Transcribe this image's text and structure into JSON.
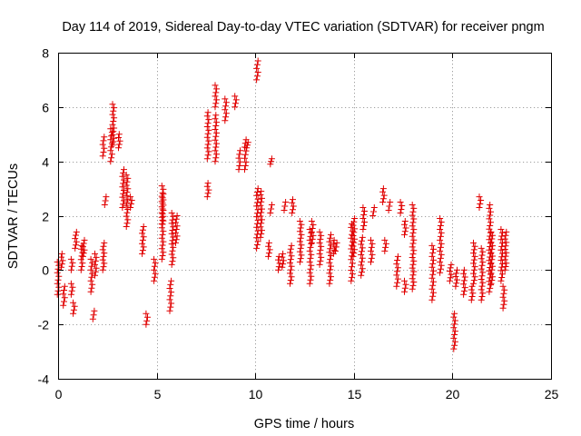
{
  "chart_data": {
    "type": "scatter",
    "title": "Day 114 of 2019, Sidereal Day-to-day VTEC variation (SDTVAR) for receiver pngm",
    "xlabel": "GPS time / hours",
    "ylabel": "SDTVAR / TECUs",
    "xlim": [
      0,
      25
    ],
    "ylim": [
      -4,
      8
    ],
    "xticks": [
      "0",
      "5",
      "10",
      "15",
      "20",
      "25"
    ],
    "yticks": [
      "-4",
      "-2",
      "0",
      "2",
      "4",
      "6",
      "8"
    ],
    "grid": true,
    "marker": "plus",
    "color": "#e00000",
    "series": [
      {
        "name": "SDTVAR",
        "tracks": [
          [
            0.0,
            0.3,
            -0.9
          ],
          [
            0.2,
            0.6,
            0.1
          ],
          [
            0.3,
            -1.3,
            -0.6
          ],
          [
            0.7,
            0.0,
            0.4
          ],
          [
            0.7,
            -0.9,
            -0.5
          ],
          [
            0.8,
            -1.6,
            -1.2
          ],
          [
            0.9,
            0.8,
            1.4
          ],
          [
            1.2,
            0.0,
            0.9
          ],
          [
            1.3,
            1.1,
            0.5
          ],
          [
            1.7,
            -0.8,
            0.4
          ],
          [
            1.8,
            -1.8,
            -1.5
          ],
          [
            1.9,
            0.6,
            -0.2
          ],
          [
            2.3,
            0.0,
            1.0
          ],
          [
            2.3,
            4.2,
            4.9
          ],
          [
            2.4,
            2.4,
            2.7
          ],
          [
            2.7,
            4.0,
            5.2
          ],
          [
            2.8,
            4.6,
            6.1
          ],
          [
            3.1,
            4.5,
            5.0
          ],
          [
            3.3,
            2.3,
            3.7
          ],
          [
            3.5,
            1.6,
            3.5
          ],
          [
            3.7,
            2.3,
            2.7
          ],
          [
            4.3,
            0.6,
            1.6
          ],
          [
            4.5,
            -2.0,
            -1.6
          ],
          [
            4.9,
            -0.4,
            0.4
          ],
          [
            5.3,
            0.4,
            3.1
          ],
          [
            5.3,
            1.7,
            2.8
          ],
          [
            5.7,
            -1.5,
            -0.4
          ],
          [
            5.8,
            0.2,
            2.1
          ],
          [
            6.0,
            1.0,
            2.0
          ],
          [
            7.6,
            2.7,
            3.2
          ],
          [
            7.6,
            4.1,
            5.8
          ],
          [
            8.0,
            4.0,
            5.7
          ],
          [
            8.0,
            6.0,
            6.8
          ],
          [
            8.5,
            5.5,
            6.3
          ],
          [
            9.0,
            6.0,
            6.4
          ],
          [
            9.2,
            3.7,
            4.4
          ],
          [
            9.5,
            3.7,
            4.8
          ],
          [
            9.6,
            4.5,
            4.7
          ],
          [
            10.1,
            7.0,
            7.7
          ],
          [
            10.1,
            0.8,
            3.0
          ],
          [
            10.3,
            1.2,
            2.9
          ],
          [
            10.7,
            0.5,
            1.0
          ],
          [
            10.8,
            3.9,
            4.1
          ],
          [
            10.8,
            2.1,
            2.4
          ],
          [
            11.2,
            0.0,
            0.5
          ],
          [
            11.4,
            0.1,
            0.6
          ],
          [
            11.5,
            2.2,
            2.5
          ],
          [
            11.8,
            -0.5,
            0.9
          ],
          [
            11.9,
            2.1,
            2.6
          ],
          [
            12.3,
            0.3,
            1.8
          ],
          [
            12.8,
            -0.5,
            1.5
          ],
          [
            12.9,
            1.0,
            1.8
          ],
          [
            13.3,
            0.2,
            1.4
          ],
          [
            13.8,
            -0.5,
            1.3
          ],
          [
            14.0,
            0.6,
            1.1
          ],
          [
            14.1,
            0.7,
            1.0
          ],
          [
            14.9,
            -0.4,
            1.7
          ],
          [
            15.0,
            0.5,
            1.9
          ],
          [
            15.4,
            -0.2,
            1.2
          ],
          [
            15.5,
            1.5,
            2.3
          ],
          [
            15.9,
            0.3,
            1.1
          ],
          [
            16.0,
            2.0,
            2.3
          ],
          [
            16.5,
            2.5,
            3.0
          ],
          [
            16.6,
            0.7,
            1.1
          ],
          [
            16.8,
            2.2,
            2.5
          ],
          [
            17.2,
            -0.6,
            0.5
          ],
          [
            17.4,
            2.1,
            2.5
          ],
          [
            17.6,
            1.3,
            1.8
          ],
          [
            17.6,
            -0.8,
            -0.4
          ],
          [
            18.0,
            -0.7,
            2.4
          ],
          [
            19.0,
            -1.1,
            0.9
          ],
          [
            19.4,
            -0.1,
            1.9
          ],
          [
            19.9,
            -0.4,
            0.2
          ],
          [
            20.1,
            -2.9,
            -1.6
          ],
          [
            20.2,
            -0.6,
            0.0
          ],
          [
            20.6,
            -0.9,
            0.0
          ],
          [
            21.0,
            -1.1,
            -0.6
          ],
          [
            21.1,
            -0.5,
            1.0
          ],
          [
            21.4,
            2.3,
            2.7
          ],
          [
            21.5,
            -1.1,
            0.8
          ],
          [
            21.9,
            -0.8,
            2.4
          ],
          [
            22.0,
            -0.5,
            1.4
          ],
          [
            22.5,
            -0.4,
            1.5
          ],
          [
            22.6,
            -1.4,
            -0.6
          ],
          [
            22.7,
            0.0,
            1.4
          ]
        ]
      }
    ]
  }
}
